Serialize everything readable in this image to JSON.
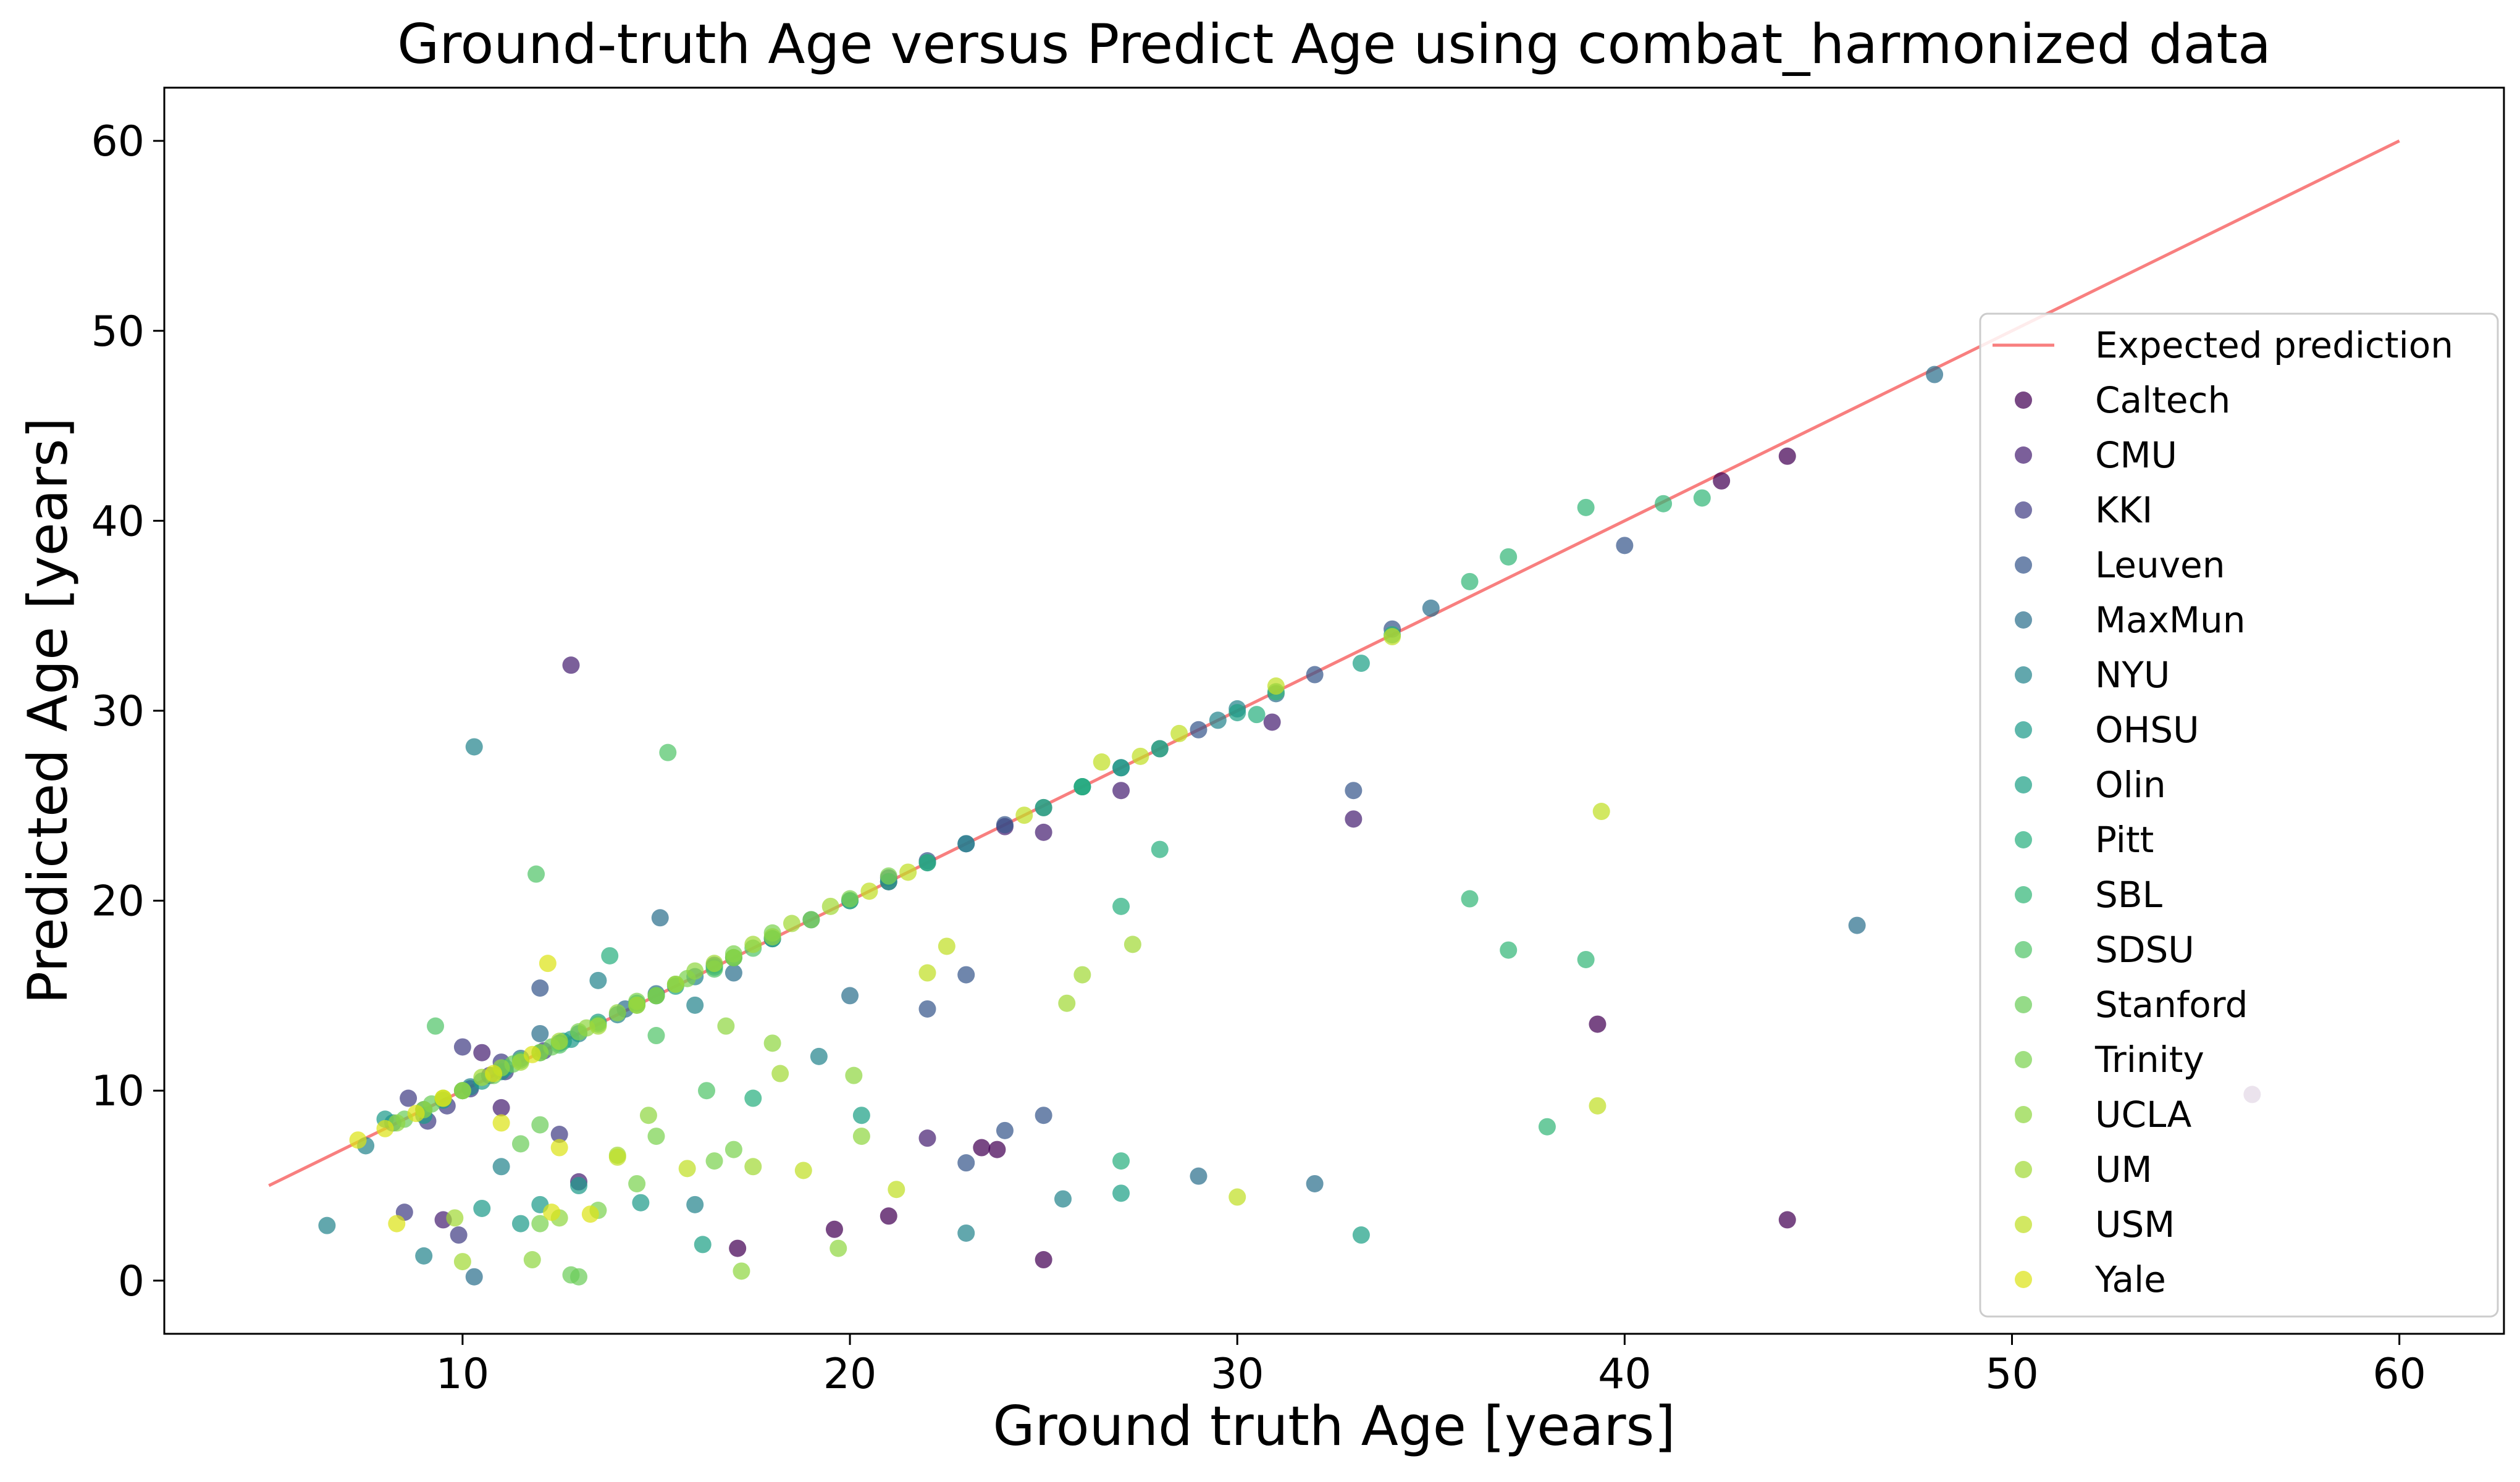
{
  "chart_data": {
    "type": "scatter",
    "title": "Ground-truth Age versus Predict Age using combat_harmonized data",
    "xlabel": "Ground truth Age [years]",
    "ylabel": "Predicted Age [years]",
    "xlim": [
      2.3,
      62.7
    ],
    "ylim": [
      -2.8,
      62.8
    ],
    "xticks": [
      10,
      20,
      30,
      40,
      50,
      60
    ],
    "yticks": [
      0,
      10,
      20,
      30,
      40,
      50,
      60
    ],
    "grid": false,
    "legend_position": "right",
    "reference_line": {
      "name": "Expected prediction",
      "color": "#f87f7f",
      "x": [
        5,
        60
      ],
      "y": [
        5,
        60
      ]
    },
    "series": [
      {
        "name": "Caltech",
        "color": "#440154",
        "points": [
          [
            44.2,
            43.4
          ],
          [
            42.5,
            42.1
          ],
          [
            39.3,
            13.5
          ],
          [
            56.2,
            9.8
          ],
          [
            44.2,
            3.2
          ],
          [
            25.0,
            1.1
          ],
          [
            17.1,
            1.7
          ],
          [
            19.6,
            2.7
          ],
          [
            23.4,
            7.0
          ],
          [
            23.8,
            6.9
          ],
          [
            21.0,
            3.4
          ]
        ]
      },
      {
        "name": "CMU",
        "color": "#482173",
        "points": [
          [
            27.0,
            25.8
          ],
          [
            30.9,
            29.4
          ],
          [
            33.0,
            24.3
          ],
          [
            12.8,
            32.4
          ],
          [
            24.0,
            23.9
          ],
          [
            25.0,
            23.6
          ],
          [
            21.0,
            21.0
          ],
          [
            10.5,
            12.0
          ],
          [
            11.0,
            9.1
          ],
          [
            9.5,
            3.2
          ],
          [
            13.0,
            5.2
          ],
          [
            22.0,
            7.5
          ]
        ]
      },
      {
        "name": "KKI",
        "color": "#433e85",
        "points": [
          [
            8.6,
            9.6
          ],
          [
            9.1,
            8.4
          ],
          [
            9.6,
            9.2
          ],
          [
            10.2,
            10.1
          ],
          [
            10.7,
            10.8
          ],
          [
            11.1,
            11.0
          ],
          [
            12.1,
            12.1
          ],
          [
            8.5,
            3.6
          ],
          [
            10.0,
            12.3
          ],
          [
            12.5,
            7.7
          ],
          [
            11.0,
            11.5
          ],
          [
            9.9,
            2.4
          ]
        ]
      },
      {
        "name": "Leuven",
        "color": "#38588c",
        "points": [
          [
            21.0,
            21.2
          ],
          [
            22.0,
            22.1
          ],
          [
            23.0,
            23.0
          ],
          [
            24.0,
            24.0
          ],
          [
            25.0,
            24.9
          ],
          [
            28.0,
            28.0
          ],
          [
            29.0,
            29.0
          ],
          [
            32.0,
            31.9
          ],
          [
            34.0,
            34.3
          ],
          [
            40.0,
            38.7
          ],
          [
            33.0,
            25.8
          ],
          [
            23.0,
            16.1
          ],
          [
            22.0,
            14.3
          ],
          [
            23.0,
            6.2
          ],
          [
            25.0,
            8.7
          ],
          [
            24.0,
            7.9
          ],
          [
            12.0,
            15.4
          ]
        ]
      },
      {
        "name": "MaxMun",
        "color": "#2d708e",
        "points": [
          [
            10.0,
            10.0
          ],
          [
            11.5,
            11.7
          ],
          [
            14.2,
            14.3
          ],
          [
            15.0,
            15.1
          ],
          [
            16.5,
            16.6
          ],
          [
            18.0,
            18.0
          ],
          [
            20.0,
            20.0
          ],
          [
            27.0,
            27.0
          ],
          [
            31.0,
            30.9
          ],
          [
            35.0,
            35.4
          ],
          [
            48.0,
            47.7
          ],
          [
            46.0,
            18.7
          ],
          [
            20.0,
            15.0
          ],
          [
            15.1,
            19.1
          ],
          [
            12.0,
            13.0
          ],
          [
            17.0,
            16.2
          ],
          [
            10.3,
            0.2
          ],
          [
            29.0,
            5.5
          ],
          [
            32.0,
            5.1
          ]
        ]
      },
      {
        "name": "NYU",
        "color": "#25858e",
        "points": [
          [
            7.5,
            7.1
          ],
          [
            8.2,
            8.3
          ],
          [
            9.0,
            9.0
          ],
          [
            10.2,
            10.2
          ],
          [
            11.0,
            11.0
          ],
          [
            12.5,
            12.5
          ],
          [
            13.0,
            13.0
          ],
          [
            14.0,
            14.0
          ],
          [
            15.0,
            15.0
          ],
          [
            16.0,
            16.0
          ],
          [
            17.0,
            17.0
          ],
          [
            19.0,
            19.0
          ],
          [
            22.0,
            22.0
          ],
          [
            23.0,
            23.0
          ],
          [
            26.0,
            26.0
          ],
          [
            29.5,
            29.5
          ],
          [
            30.0,
            30.1
          ],
          [
            10.3,
            28.1
          ],
          [
            13.5,
            15.8
          ],
          [
            16.0,
            14.5
          ],
          [
            19.2,
            11.8
          ],
          [
            11.0,
            6.0
          ],
          [
            16.0,
            4.0
          ],
          [
            6.5,
            2.9
          ],
          [
            9.0,
            1.3
          ],
          [
            23.0,
            2.5
          ],
          [
            25.5,
            4.3
          ]
        ]
      },
      {
        "name": "OHSU",
        "color": "#1e9b8a",
        "points": [
          [
            8.0,
            8.5
          ],
          [
            9.0,
            8.7
          ],
          [
            9.5,
            9.5
          ],
          [
            10.5,
            10.5
          ],
          [
            11.1,
            11.2
          ],
          [
            12.0,
            12.0
          ],
          [
            12.8,
            12.7
          ],
          [
            13.5,
            13.6
          ],
          [
            10.5,
            3.8
          ],
          [
            12.0,
            4.0
          ],
          [
            11.5,
            3.0
          ],
          [
            14.6,
            4.1
          ],
          [
            13.0,
            5.0
          ]
        ]
      },
      {
        "name": "Olin",
        "color": "#1fa187",
        "points": [
          [
            12.6,
            12.6
          ],
          [
            14.5,
            14.6
          ],
          [
            15.5,
            15.5
          ],
          [
            16.5,
            16.5
          ],
          [
            18.0,
            18.0
          ],
          [
            21.0,
            21.0
          ],
          [
            26.0,
            26.0
          ],
          [
            27.0,
            27.0
          ],
          [
            30.0,
            29.9
          ],
          [
            33.2,
            32.5
          ],
          [
            33.2,
            2.4
          ],
          [
            27.0,
            4.6
          ],
          [
            16.2,
            1.9
          ],
          [
            20.3,
            8.7
          ]
        ]
      },
      {
        "name": "Pitt",
        "color": "#2ab07f",
        "points": [
          [
            15.0,
            15.0
          ],
          [
            17.0,
            17.0
          ],
          [
            20.0,
            20.0
          ],
          [
            22.0,
            22.0
          ],
          [
            25.0,
            24.9
          ],
          [
            26.0,
            26.0
          ],
          [
            28.0,
            28.0
          ],
          [
            30.5,
            29.8
          ],
          [
            34.0,
            34.0
          ],
          [
            27.0,
            19.7
          ],
          [
            28.0,
            22.7
          ],
          [
            27.0,
            6.3
          ],
          [
            17.5,
            9.6
          ],
          [
            13.8,
            17.1
          ]
        ]
      },
      {
        "name": "SBL",
        "color": "#35b779",
        "points": [
          [
            36.0,
            36.8
          ],
          [
            37.0,
            38.1
          ],
          [
            39.0,
            40.7
          ],
          [
            41.0,
            40.9
          ],
          [
            42.0,
            41.2
          ],
          [
            36.0,
            20.1
          ],
          [
            37.0,
            17.4
          ],
          [
            39.0,
            16.9
          ],
          [
            38.0,
            8.1
          ],
          [
            31.0,
            31.0
          ]
        ]
      },
      {
        "name": "SDSU",
        "color": "#52c569",
        "points": [
          [
            11.5,
            11.6
          ],
          [
            12.5,
            12.4
          ],
          [
            13.5,
            13.5
          ],
          [
            14.5,
            14.5
          ],
          [
            15.5,
            15.6
          ],
          [
            16.5,
            16.4
          ],
          [
            17.5,
            17.5
          ],
          [
            15.3,
            27.8
          ],
          [
            11.9,
            21.4
          ],
          [
            9.3,
            13.4
          ],
          [
            15.0,
            12.9
          ],
          [
            16.3,
            10.0
          ]
        ]
      },
      {
        "name": "Stanford",
        "color": "#6ccd5a",
        "points": [
          [
            8.5,
            8.5
          ],
          [
            9.2,
            9.3
          ],
          [
            10.0,
            10.0
          ],
          [
            10.8,
            10.8
          ],
          [
            11.3,
            11.4
          ],
          [
            12.3,
            12.3
          ],
          [
            12.0,
            8.2
          ],
          [
            11.5,
            7.2
          ],
          [
            12.8,
            0.3
          ],
          [
            13.0,
            0.2
          ]
        ]
      },
      {
        "name": "Trinity",
        "color": "#7cd250",
        "points": [
          [
            13.0,
            13.1
          ],
          [
            14.5,
            14.7
          ],
          [
            15.8,
            15.9
          ],
          [
            17.0,
            17.2
          ],
          [
            18.0,
            18.3
          ],
          [
            19.0,
            19.0
          ],
          [
            20.0,
            20.1
          ],
          [
            21.0,
            21.3
          ],
          [
            17.0,
            6.9
          ],
          [
            16.5,
            6.3
          ],
          [
            15.0,
            7.6
          ],
          [
            14.5,
            5.1
          ],
          [
            12.0,
            3.0
          ],
          [
            13.5,
            3.7
          ]
        ]
      },
      {
        "name": "UCLA",
        "color": "#90d743",
        "points": [
          [
            8.3,
            8.3
          ],
          [
            9.0,
            9.0
          ],
          [
            10.0,
            10.0
          ],
          [
            11.0,
            11.2
          ],
          [
            12.0,
            12.0
          ],
          [
            13.2,
            13.3
          ],
          [
            14.0,
            14.1
          ],
          [
            15.0,
            15.0
          ],
          [
            16.0,
            16.3
          ],
          [
            17.0,
            17.0
          ],
          [
            18.0,
            18.1
          ],
          [
            14.8,
            8.7
          ],
          [
            16.8,
            13.4
          ],
          [
            18.0,
            12.5
          ],
          [
            20.1,
            10.8
          ],
          [
            20.3,
            7.6
          ],
          [
            19.7,
            1.7
          ],
          [
            17.2,
            0.5
          ],
          [
            12.5,
            3.3
          ],
          [
            11.8,
            1.1
          ]
        ]
      },
      {
        "name": "UM",
        "color": "#a2da37",
        "points": [
          [
            9.5,
            9.6
          ],
          [
            10.5,
            10.7
          ],
          [
            11.5,
            11.5
          ],
          [
            12.5,
            12.6
          ],
          [
            13.5,
            13.4
          ],
          [
            14.5,
            14.5
          ],
          [
            15.5,
            15.6
          ],
          [
            16.5,
            16.7
          ],
          [
            17.5,
            17.7
          ],
          [
            18.5,
            18.8
          ],
          [
            19.5,
            19.7
          ],
          [
            26.0,
            16.1
          ],
          [
            27.3,
            17.7
          ],
          [
            25.6,
            14.6
          ],
          [
            18.2,
            10.9
          ],
          [
            17.5,
            6.0
          ],
          [
            14.0,
            6.6
          ],
          [
            10.0,
            1.0
          ],
          [
            9.8,
            3.3
          ]
        ]
      },
      {
        "name": "USM",
        "color": "#c0df25",
        "points": [
          [
            20.5,
            20.5
          ],
          [
            21.5,
            21.5
          ],
          [
            24.5,
            24.5
          ],
          [
            26.5,
            27.3
          ],
          [
            27.5,
            27.6
          ],
          [
            28.5,
            28.8
          ],
          [
            31.0,
            31.3
          ],
          [
            34.0,
            33.9
          ],
          [
            39.4,
            24.7
          ],
          [
            39.3,
            9.2
          ],
          [
            30.0,
            4.4
          ],
          [
            22.0,
            16.2
          ],
          [
            22.5,
            17.6
          ],
          [
            18.8,
            5.8
          ],
          [
            21.2,
            4.8
          ],
          [
            14.0,
            6.5
          ],
          [
            15.8,
            5.9
          ]
        ]
      },
      {
        "name": "Yale",
        "color": "#dde318",
        "points": [
          [
            7.3,
            7.4
          ],
          [
            8.0,
            8.0
          ],
          [
            8.8,
            8.8
          ],
          [
            9.5,
            9.6
          ],
          [
            10.8,
            10.9
          ],
          [
            11.8,
            11.9
          ],
          [
            12.2,
            16.7
          ],
          [
            8.3,
            3.0
          ],
          [
            12.3,
            3.6
          ],
          [
            13.3,
            3.5
          ],
          [
            11.0,
            8.3
          ],
          [
            12.5,
            7.0
          ]
        ]
      }
    ]
  }
}
